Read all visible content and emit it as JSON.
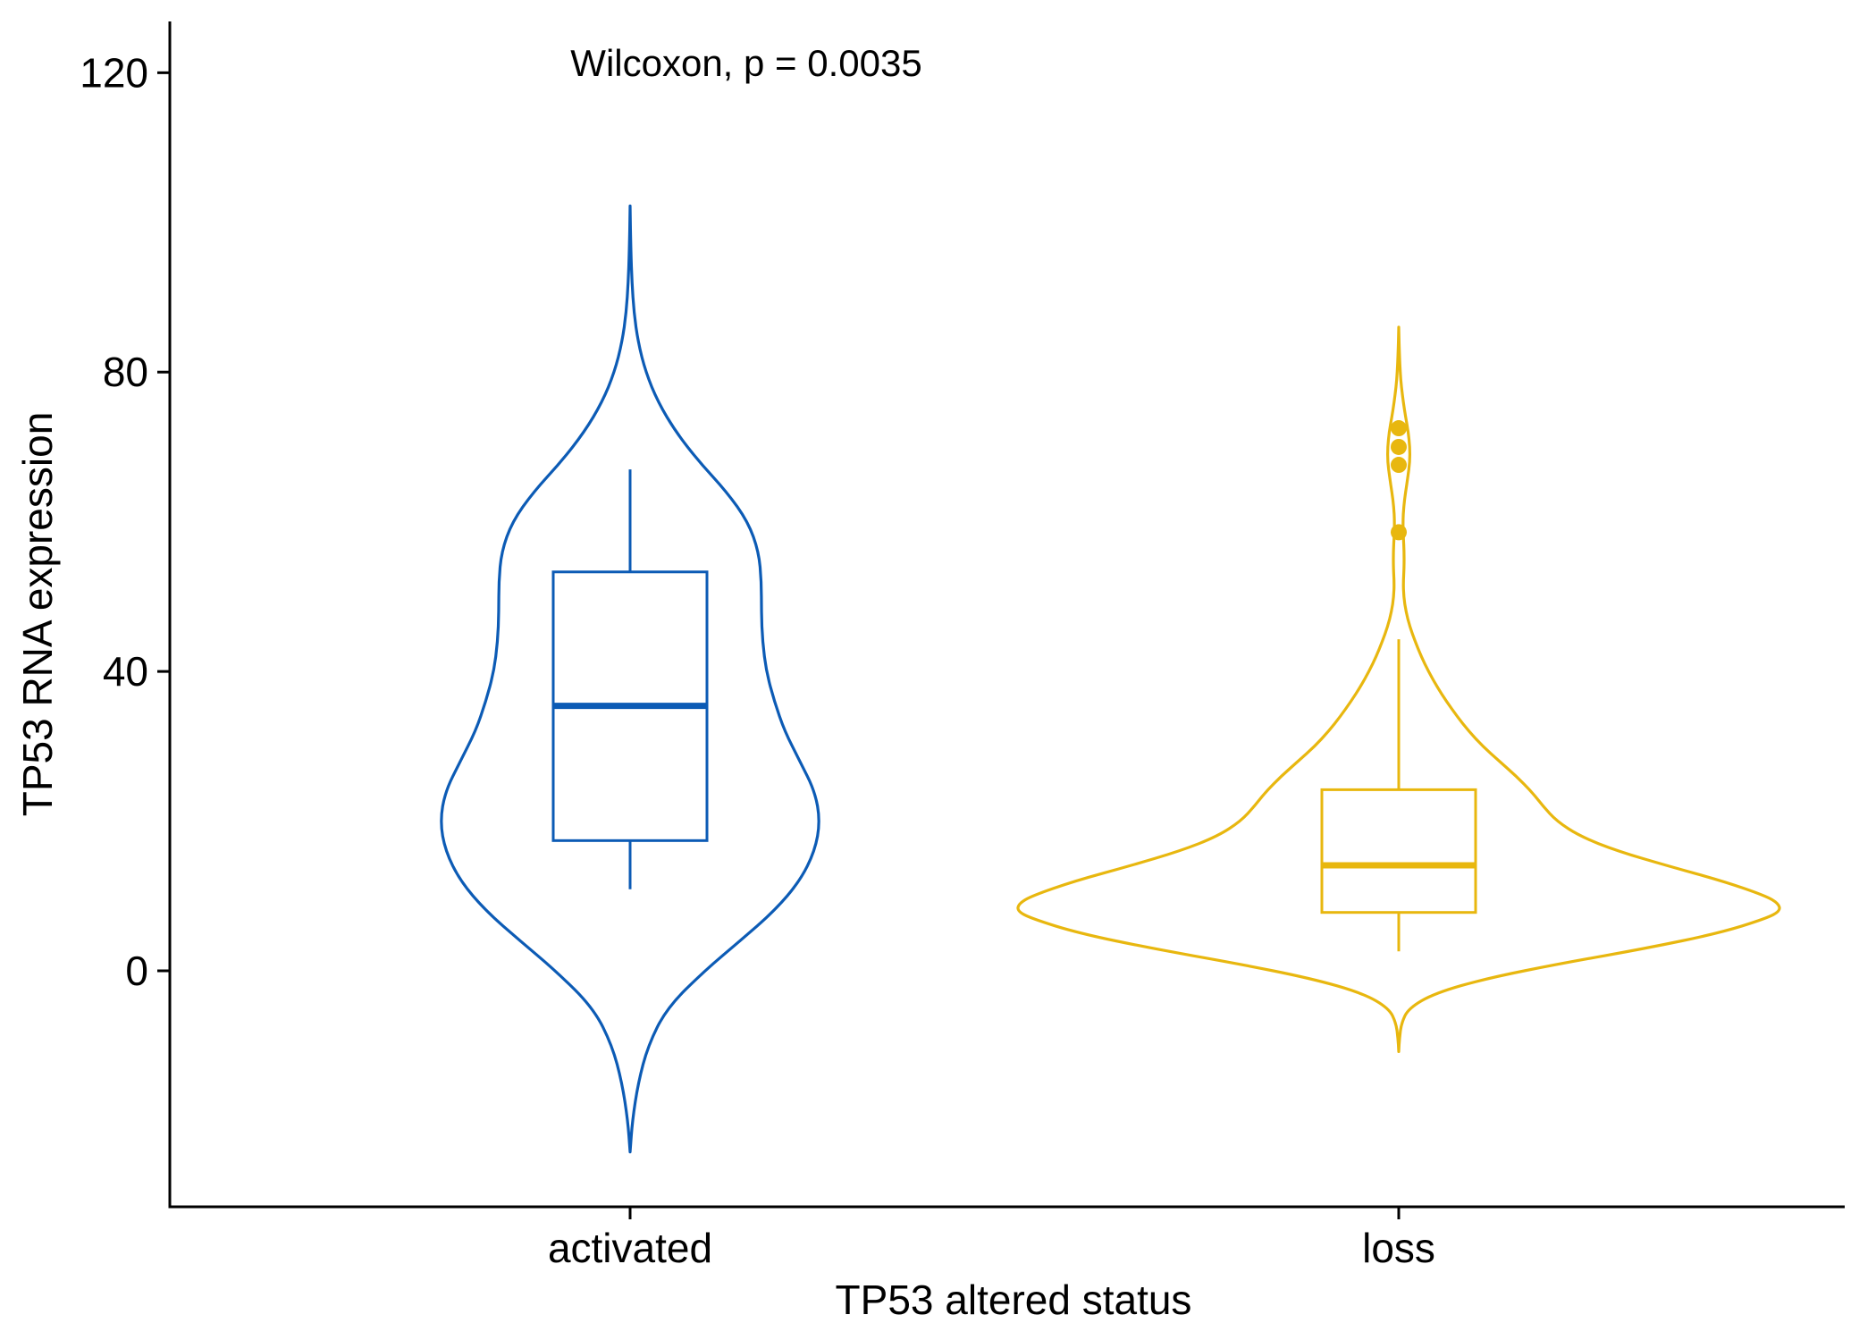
{
  "chart_data": {
    "type": "violin",
    "annotation": "Wilcoxon, p = 0.0035",
    "xlabel": "TP53 altered status",
    "ylabel": "TP53 RNA expression",
    "ylim": [
      -31.5,
      127
    ],
    "y_ticks": [
      0,
      40,
      80,
      120
    ],
    "y_tick_labels": [
      "0",
      "40",
      "80",
      "120"
    ],
    "grid": false,
    "legend": "none",
    "categories": [
      "activated",
      "loss"
    ],
    "groups": [
      {
        "name": "activated",
        "color": "#0C5BB5",
        "box": {
          "whisker_low": 10.9,
          "q1": 17.4,
          "median": 35.4,
          "q3": 53.3,
          "whisker_high": 67.0
        },
        "outliers": [],
        "violin_profile": [
          [
            -24.2,
            0.0
          ],
          [
            -20.0,
            0.006
          ],
          [
            -15.0,
            0.021
          ],
          [
            -10.0,
            0.047
          ],
          [
            -5.0,
            0.096
          ],
          [
            0.0,
            0.195
          ],
          [
            4.0,
            0.288
          ],
          [
            8.0,
            0.378
          ],
          [
            12.0,
            0.445
          ],
          [
            16.0,
            0.484
          ],
          [
            20.0,
            0.498
          ],
          [
            24.0,
            0.484
          ],
          [
            28.0,
            0.445
          ],
          [
            32.0,
            0.405
          ],
          [
            36.0,
            0.378
          ],
          [
            40.0,
            0.357
          ],
          [
            44.0,
            0.347
          ],
          [
            48.0,
            0.344
          ],
          [
            52.0,
            0.344
          ],
          [
            56.0,
            0.337
          ],
          [
            60.0,
            0.309
          ],
          [
            64.0,
            0.253
          ],
          [
            68.0,
            0.181
          ],
          [
            72.0,
            0.12
          ],
          [
            76.0,
            0.073
          ],
          [
            80.0,
            0.041
          ],
          [
            84.0,
            0.021
          ],
          [
            88.0,
            0.01
          ],
          [
            92.0,
            0.005
          ],
          [
            96.0,
            0.002
          ],
          [
            102.2,
            0.0
          ]
        ]
      },
      {
        "name": "loss",
        "color": "#E8B70F",
        "box": {
          "whisker_low": 2.6,
          "q1": 7.8,
          "median": 14.1,
          "q3": 24.2,
          "whisker_high": 44.3
        },
        "outliers": [
          72.5,
          70.0,
          67.6,
          58.6
        ],
        "violin_profile": [
          [
            -10.8,
            0.0
          ],
          [
            -9.0,
            0.002
          ],
          [
            -7.0,
            0.007
          ],
          [
            -5.0,
            0.026
          ],
          [
            -3.0,
            0.094
          ],
          [
            -1.0,
            0.231
          ],
          [
            1.0,
            0.427
          ],
          [
            3.0,
            0.647
          ],
          [
            5.0,
            0.837
          ],
          [
            7.0,
            0.963
          ],
          [
            8.0,
            1.0
          ],
          [
            9.0,
            0.995
          ],
          [
            10.0,
            0.962
          ],
          [
            12.0,
            0.849
          ],
          [
            14.0,
            0.706
          ],
          [
            16.0,
            0.573
          ],
          [
            18.0,
            0.474
          ],
          [
            20.0,
            0.414
          ],
          [
            22.0,
            0.378
          ],
          [
            24.0,
            0.347
          ],
          [
            26.0,
            0.308
          ],
          [
            28.0,
            0.264
          ],
          [
            30.0,
            0.22
          ],
          [
            32.0,
            0.184
          ],
          [
            34.0,
            0.153
          ],
          [
            36.0,
            0.125
          ],
          [
            38.0,
            0.1
          ],
          [
            40.0,
            0.078
          ],
          [
            42.0,
            0.059
          ],
          [
            44.0,
            0.043
          ],
          [
            46.0,
            0.029
          ],
          [
            48.0,
            0.019
          ],
          [
            50.0,
            0.013
          ],
          [
            52.0,
            0.012
          ],
          [
            54.0,
            0.014
          ],
          [
            56.0,
            0.014
          ],
          [
            58.0,
            0.012
          ],
          [
            60.0,
            0.011
          ],
          [
            62.0,
            0.013
          ],
          [
            64.0,
            0.018
          ],
          [
            66.0,
            0.024
          ],
          [
            68.0,
            0.029
          ],
          [
            70.0,
            0.029
          ],
          [
            72.0,
            0.025
          ],
          [
            74.0,
            0.018
          ],
          [
            76.0,
            0.012
          ],
          [
            78.0,
            0.007
          ],
          [
            80.0,
            0.004
          ],
          [
            82.0,
            0.002
          ],
          [
            86.0,
            0.0
          ]
        ]
      }
    ]
  }
}
